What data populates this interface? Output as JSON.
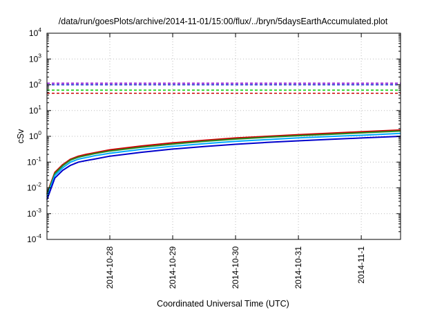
{
  "chart_data": {
    "type": "line",
    "title": "/data/run/goesPlots/archive/2014-11-01/15:00/flux/../bryn/5daysEarthAccumulated.plot",
    "xlabel": "Coordinated Universal Time (UTC)",
    "ylabel": "cSv",
    "yscale": "log",
    "ylim": [
      0.0001,
      10000
    ],
    "xlim": [
      "2014-10-27 00:00",
      "2014-11-01 15:00"
    ],
    "grid": true,
    "legend": "none",
    "y_ticks": [
      {
        "base": "10",
        "exp": "-4",
        "value": 0.0001
      },
      {
        "base": "10",
        "exp": "-3",
        "value": 0.001
      },
      {
        "base": "10",
        "exp": "-2",
        "value": 0.01
      },
      {
        "base": "10",
        "exp": "-1",
        "value": 0.1
      },
      {
        "base": "10",
        "exp": "0",
        "value": 1
      },
      {
        "base": "10",
        "exp": "1",
        "value": 10
      },
      {
        "base": "10",
        "exp": "2",
        "value": 100
      },
      {
        "base": "10",
        "exp": "3",
        "value": 1000
      },
      {
        "base": "10",
        "exp": "4",
        "value": 10000
      }
    ],
    "x_ticks": [
      {
        "label": "2014-10-28",
        "value": "2014-10-28 00:00"
      },
      {
        "label": "2014-10-29",
        "value": "2014-10-29 00:00"
      },
      {
        "label": "2014-10-30",
        "value": "2014-10-30 00:00"
      },
      {
        "label": "2014-10-31",
        "value": "2014-10-31 00:00"
      },
      {
        "label": "2014-11-1",
        "value": "2014-11-01 00:00"
      }
    ],
    "series": [
      {
        "color": "#cc0000",
        "x": [
          "2014-10-27 00:00",
          "2014-10-27 03:00",
          "2014-10-27 06:00",
          "2014-10-27 09:00",
          "2014-10-27 12:00",
          "2014-10-27 15:00",
          "2014-10-27 18:00",
          "2014-10-28 00:00",
          "2014-10-28 12:00",
          "2014-10-29 00:00",
          "2014-10-29 12:00",
          "2014-10-30 00:00",
          "2014-10-30 12:00",
          "2014-10-31 00:00",
          "2014-10-31 12:00",
          "2014-11-01 00:00",
          "2014-11-01 15:00"
        ],
        "values": [
          0.006,
          0.04,
          0.08,
          0.13,
          0.17,
          0.2,
          0.23,
          0.3,
          0.42,
          0.56,
          0.7,
          0.86,
          1.0,
          1.16,
          1.32,
          1.5,
          1.75
        ]
      },
      {
        "color": "#228b22",
        "x": [
          "2014-10-27 00:00",
          "2014-10-27 03:00",
          "2014-10-27 06:00",
          "2014-10-27 09:00",
          "2014-10-27 12:00",
          "2014-10-27 15:00",
          "2014-10-27 18:00",
          "2014-10-28 00:00",
          "2014-10-28 12:00",
          "2014-10-29 00:00",
          "2014-10-29 12:00",
          "2014-10-30 00:00",
          "2014-10-30 12:00",
          "2014-10-31 00:00",
          "2014-10-31 12:00",
          "2014-11-01 00:00",
          "2014-11-01 15:00"
        ],
        "values": [
          0.0055,
          0.036,
          0.072,
          0.12,
          0.155,
          0.18,
          0.21,
          0.27,
          0.38,
          0.5,
          0.64,
          0.78,
          0.92,
          1.06,
          1.2,
          1.36,
          1.6
        ]
      },
      {
        "color": "#00aaff",
        "x": [
          "2014-10-27 00:00",
          "2014-10-27 03:00",
          "2014-10-27 06:00",
          "2014-10-27 09:00",
          "2014-10-27 12:00",
          "2014-10-27 15:00",
          "2014-10-27 18:00",
          "2014-10-28 00:00",
          "2014-10-28 12:00",
          "2014-10-29 00:00",
          "2014-10-29 12:00",
          "2014-10-30 00:00",
          "2014-10-30 12:00",
          "2014-10-31 00:00",
          "2014-10-31 12:00",
          "2014-11-01 00:00",
          "2014-11-01 15:00"
        ],
        "values": [
          0.0045,
          0.03,
          0.06,
          0.1,
          0.13,
          0.15,
          0.175,
          0.22,
          0.31,
          0.41,
          0.52,
          0.64,
          0.75,
          0.87,
          0.98,
          1.1,
          1.3
        ]
      },
      {
        "color": "#0000cc",
        "x": [
          "2014-10-27 00:00",
          "2014-10-27 03:00",
          "2014-10-27 06:00",
          "2014-10-27 09:00",
          "2014-10-27 12:00",
          "2014-10-27 15:00",
          "2014-10-27 18:00",
          "2014-10-28 00:00",
          "2014-10-28 12:00",
          "2014-10-29 00:00",
          "2014-10-29 12:00",
          "2014-10-30 00:00",
          "2014-10-30 12:00",
          "2014-10-31 00:00",
          "2014-10-31 12:00",
          "2014-11-01 00:00",
          "2014-11-01 15:00"
        ],
        "values": [
          0.0035,
          0.024,
          0.048,
          0.075,
          0.1,
          0.115,
          0.13,
          0.17,
          0.24,
          0.32,
          0.4,
          0.49,
          0.58,
          0.67,
          0.76,
          0.86,
          1.0
        ]
      }
    ],
    "reference_lines": [
      {
        "color": "#8800cc",
        "value": 115
      },
      {
        "color": "#0000cc",
        "value": 100
      },
      {
        "color": "#00cc00",
        "value": 62
      },
      {
        "color": "#cc0000",
        "value": 47
      }
    ]
  }
}
